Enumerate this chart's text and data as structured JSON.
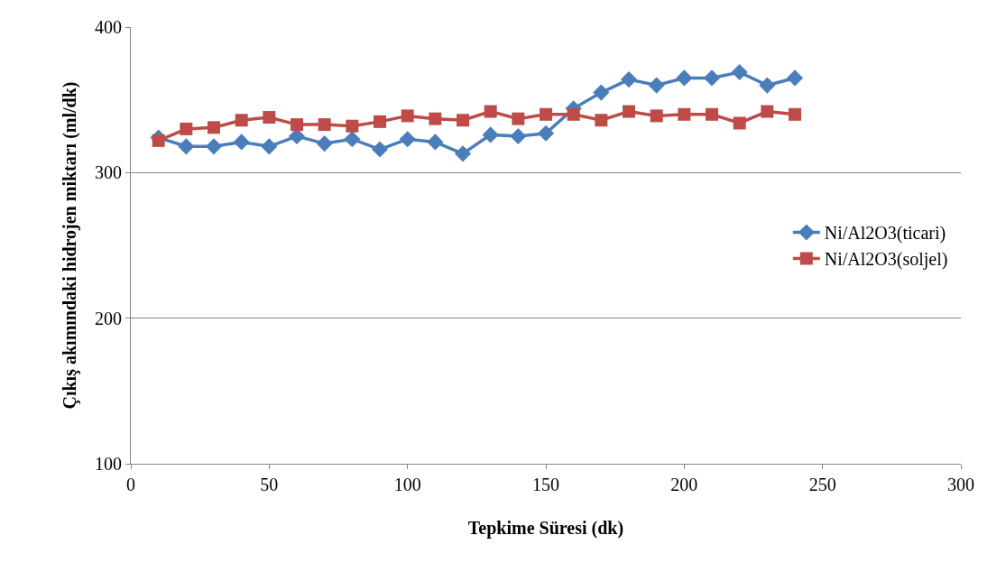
{
  "chart_data": {
    "type": "line",
    "xlabel": "Tepkime Süresi (dk)",
    "ylabel": "Çıkış akımındaki hidrojen miktarı (ml/dk)",
    "x": [
      10,
      20,
      30,
      40,
      50,
      60,
      70,
      80,
      90,
      100,
      110,
      120,
      130,
      140,
      150,
      160,
      170,
      180,
      190,
      200,
      210,
      220,
      230,
      240
    ],
    "series": [
      {
        "name": "Ni/Al2O3(ticari)",
        "color": "#4a7ebb",
        "marker": "diamond",
        "values": [
          324,
          318,
          318,
          321,
          318,
          325,
          320,
          323,
          316,
          323,
          321,
          313,
          326,
          325,
          327,
          344,
          355,
          364,
          360,
          365,
          365,
          369,
          360,
          365
        ]
      },
      {
        "name": "Ni/Al2O3(soljel)",
        "color": "#be4b48",
        "marker": "square",
        "values": [
          322,
          330,
          331,
          336,
          338,
          333,
          333,
          332,
          335,
          339,
          337,
          336,
          342,
          337,
          340,
          340,
          336,
          342,
          339,
          340,
          340,
          334,
          342,
          340
        ]
      }
    ],
    "xlim": [
      0,
      300
    ],
    "xticks": [
      0,
      50,
      100,
      150,
      200,
      250,
      300
    ],
    "ylim": [
      100,
      400
    ],
    "yticks": [
      100,
      200,
      300,
      400
    ],
    "grid": "y",
    "legend": "right",
    "line_style": "solid"
  }
}
